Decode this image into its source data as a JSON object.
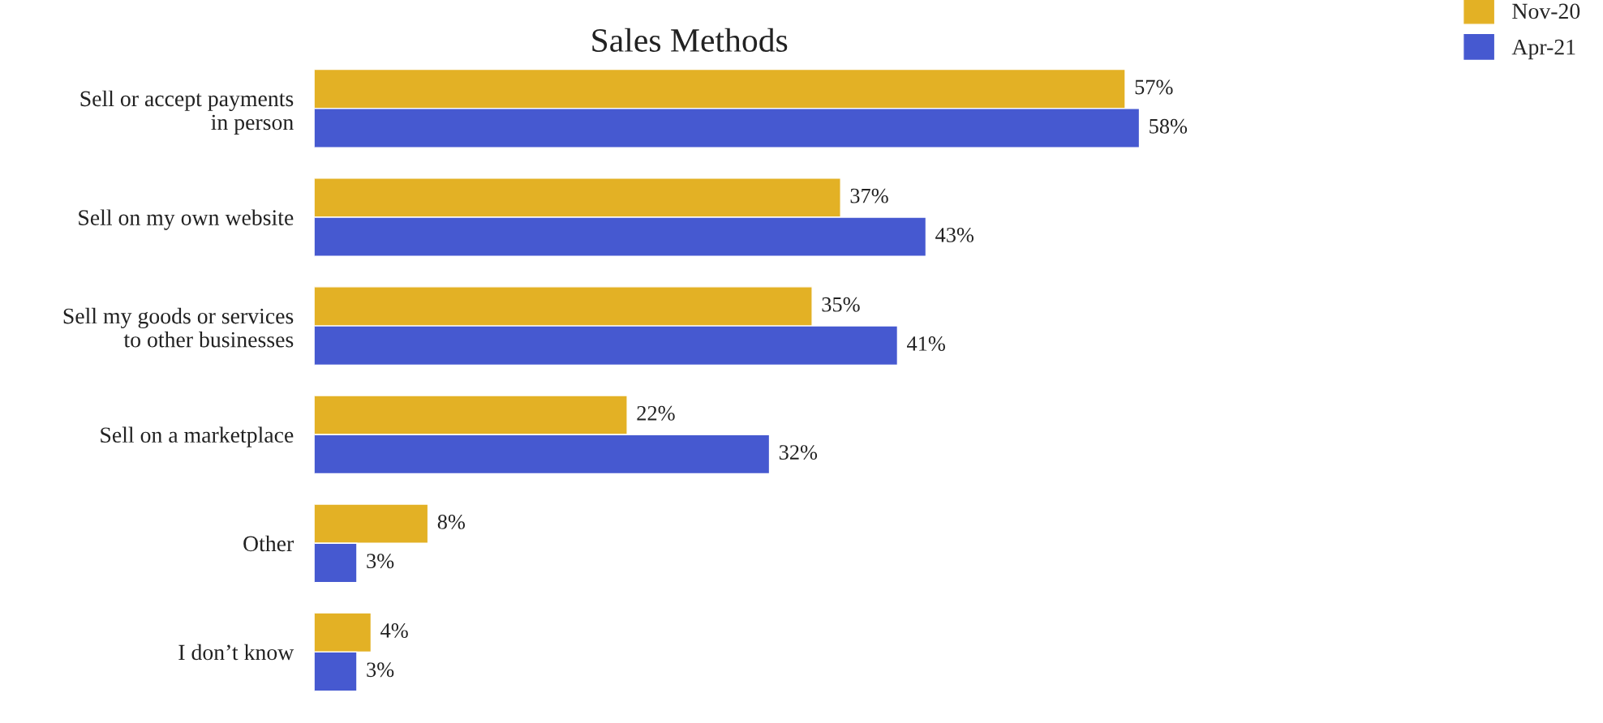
{
  "chart_data": {
    "type": "bar",
    "orientation": "horizontal",
    "title": "Sales Methods",
    "categories": [
      "Sell or accept payments\nin person",
      "Sell on my own website",
      "Sell my goods or services\nto other businesses",
      "Sell on a marketplace",
      "Other",
      "I don’t know"
    ],
    "series": [
      {
        "name": "Nov-20",
        "color": "#e3b125",
        "values": [
          57,
          37,
          35,
          22,
          8,
          4
        ],
        "value_labels": [
          "57%",
          "37%",
          "35%",
          "22%",
          "8%",
          "4%"
        ]
      },
      {
        "name": "Apr-21",
        "color": "#4659d0",
        "values": [
          58,
          43,
          41,
          32,
          3,
          3
        ],
        "value_labels": [
          "58%",
          "43%",
          "41%",
          "32%",
          "3%",
          "3%"
        ]
      }
    ],
    "legend": "top right",
    "grid": false
  }
}
